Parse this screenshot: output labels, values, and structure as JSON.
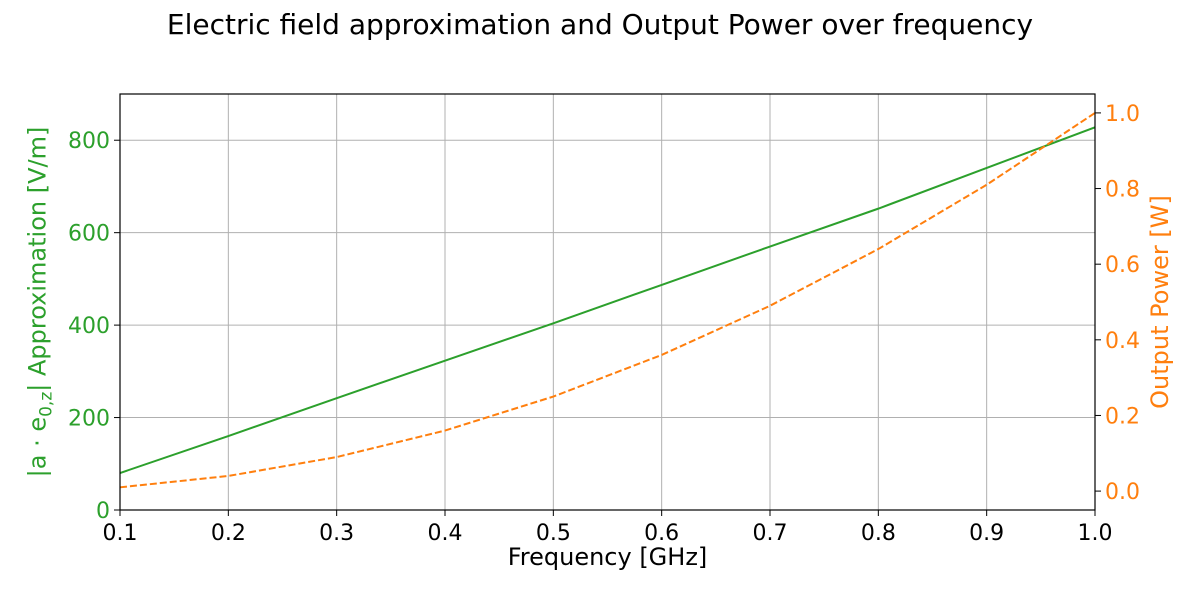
{
  "chart_data": {
    "type": "line",
    "title": "Electric field approximation and Output Power over frequency",
    "xlabel": "Frequency [GHz]",
    "xlim": [
      0.1,
      1.0
    ],
    "xticks": [
      0.1,
      0.2,
      0.3,
      0.4,
      0.5,
      0.6,
      0.7,
      0.8,
      0.9,
      1.0
    ],
    "grid": true,
    "y_left": {
      "label_prefix": "|a · e",
      "label_subscript": "0,z",
      "label_suffix": "| Approximation [V/m]",
      "lim": [
        0,
        900
      ],
      "ticks": [
        0,
        200,
        400,
        600,
        800
      ],
      "color": "#2ca02c"
    },
    "y_right": {
      "label": "Output Power [W]",
      "lim": [
        -0.05,
        1.05
      ],
      "ticks": [
        0.0,
        0.2,
        0.4,
        0.6,
        0.8,
        1.0
      ],
      "color": "#ff7f0e"
    },
    "series": [
      {
        "axis": "left",
        "style": "solid",
        "color": "#2ca02c",
        "x": [
          0.1,
          0.2,
          0.3,
          0.4,
          0.5,
          0.6,
          0.7,
          0.8,
          0.9,
          1.0
        ],
        "y": [
          80,
          160,
          242,
          323,
          404,
          487,
          570,
          652,
          740,
          828
        ]
      },
      {
        "axis": "right",
        "style": "dashed",
        "color": "#ff7f0e",
        "x": [
          0.1,
          0.2,
          0.3,
          0.4,
          0.5,
          0.6,
          0.7,
          0.8,
          0.9,
          1.0
        ],
        "y": [
          0.01,
          0.04,
          0.09,
          0.16,
          0.25,
          0.36,
          0.49,
          0.64,
          0.81,
          1.0
        ]
      }
    ]
  }
}
